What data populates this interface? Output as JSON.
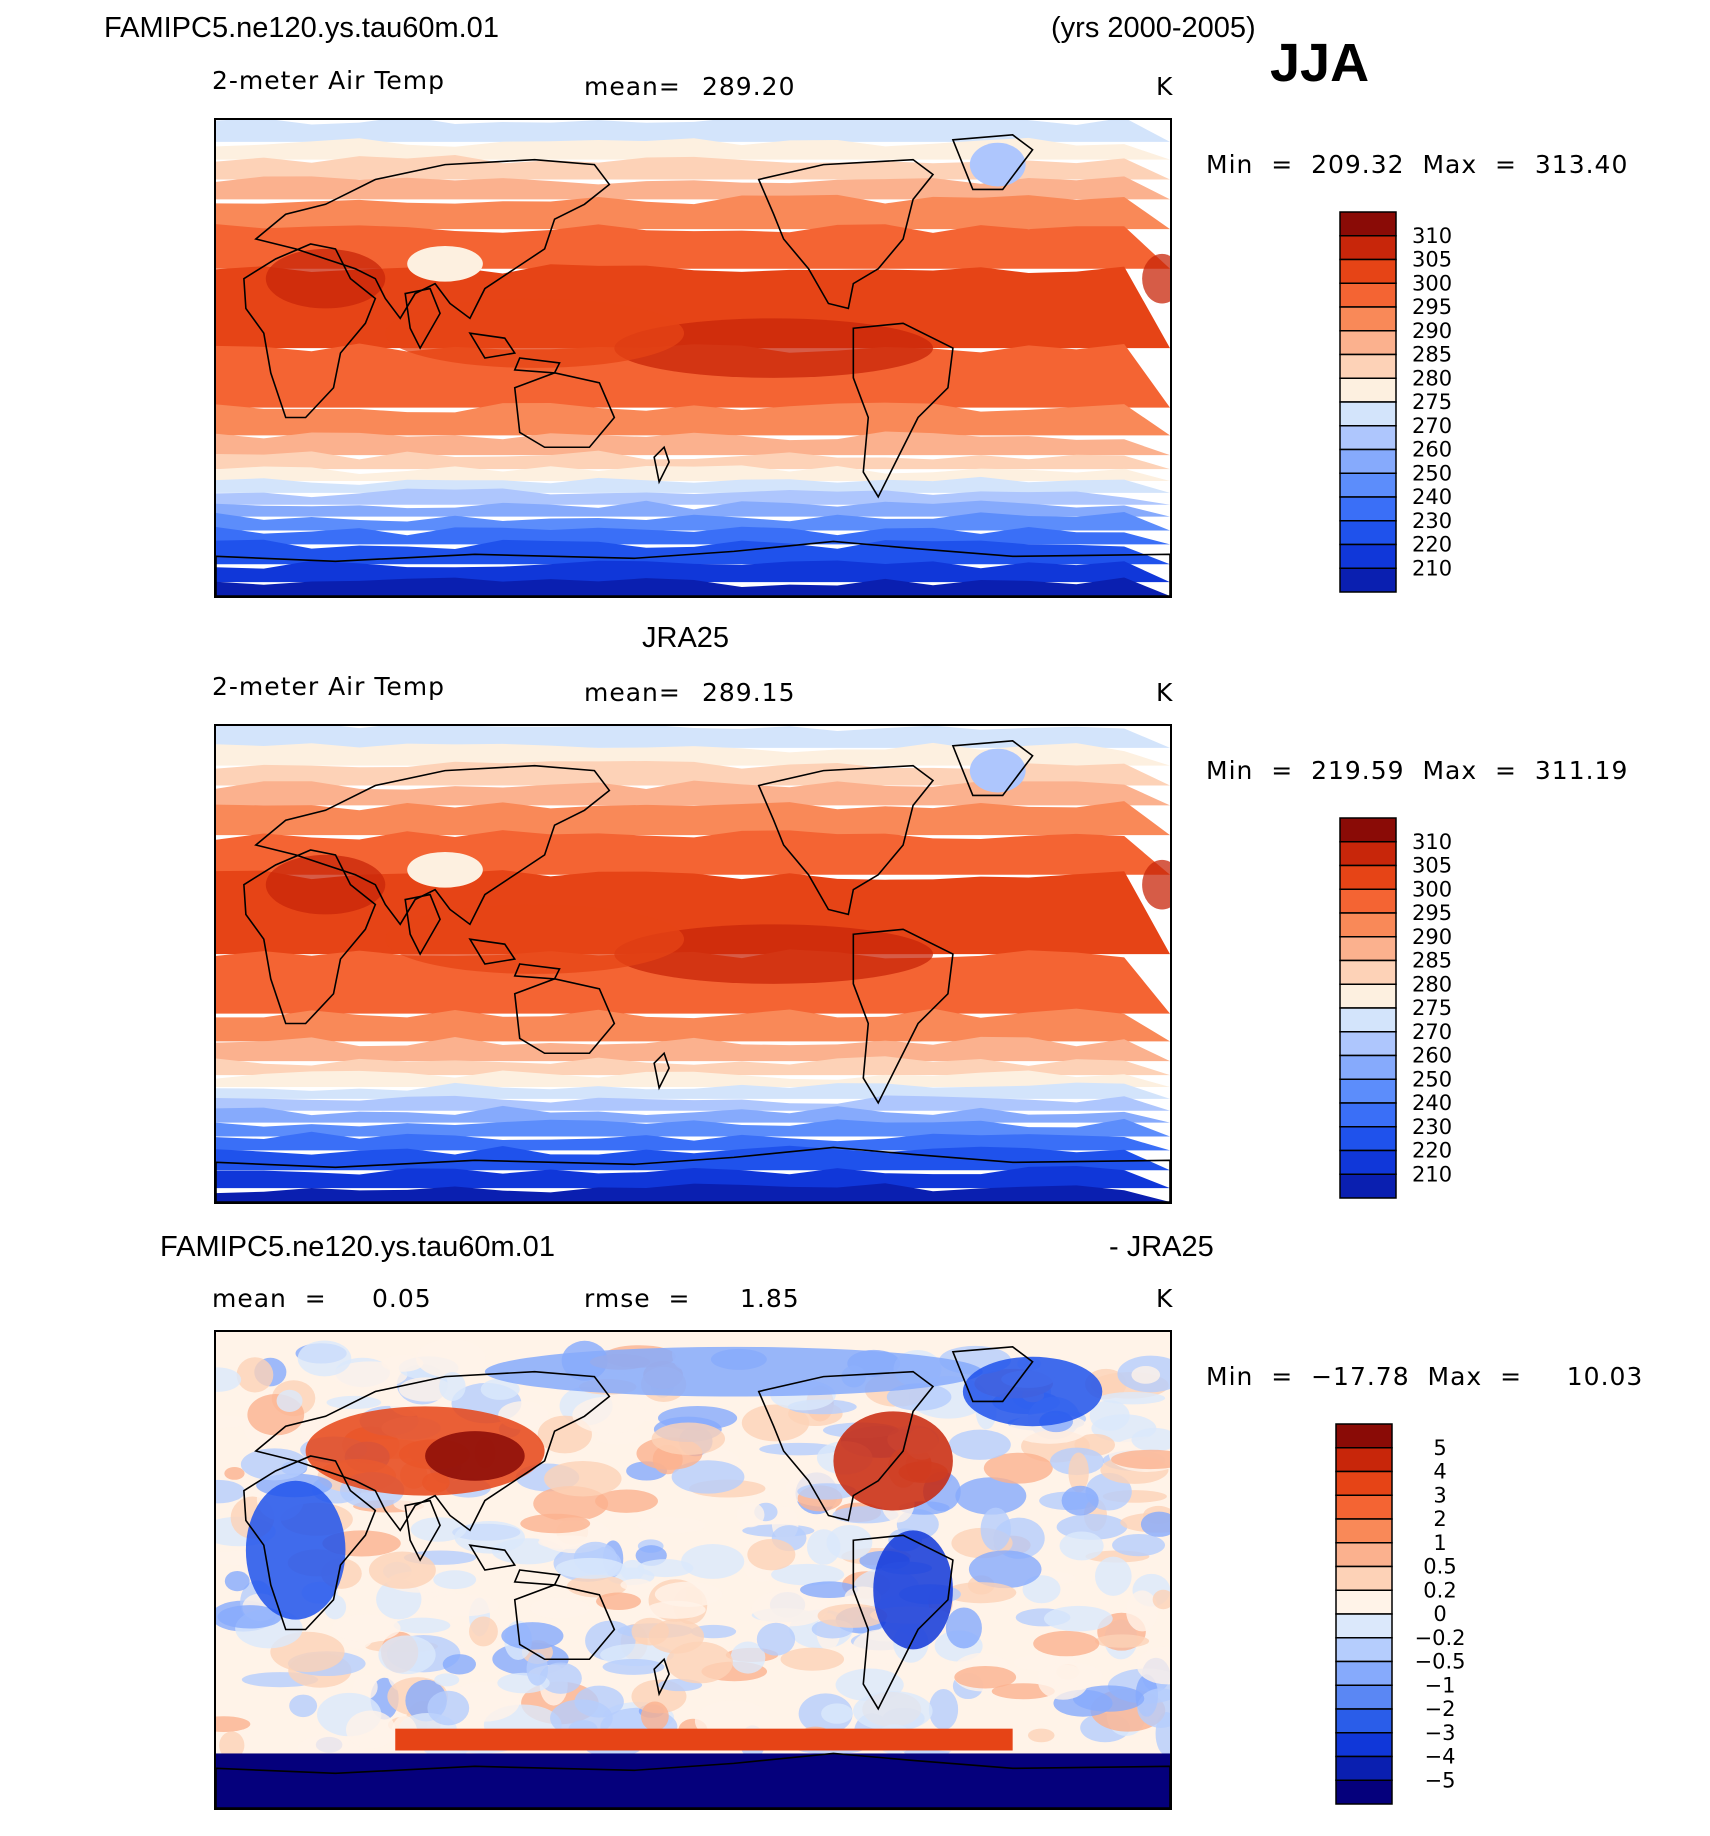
{
  "header": {
    "case_name": "FAMIPC5.ne120.ys.tau60m.01",
    "years": "(yrs 2000-2005)",
    "season": "JJA"
  },
  "colors": {
    "temp_scale": [
      "#08007a",
      "#0a1fb0",
      "#1037d9",
      "#1f52ec",
      "#3a6ff7",
      "#5c8dfb",
      "#86aafc",
      "#aec6fd",
      "#d3e4fb",
      "#fdf0e0",
      "#fdd2b7",
      "#fbb18e",
      "#f98958",
      "#f46433",
      "#e64416",
      "#c8260a",
      "#8a0b06"
    ],
    "diff_scale": [
      "#05007c",
      "#0a1fb0",
      "#1037d9",
      "#2a5de9",
      "#5a87f4",
      "#86aafc",
      "#b5cdfd",
      "#dbe8fb",
      "#fff3e8",
      "#fdd2b7",
      "#fbb18e",
      "#f98958",
      "#f46433",
      "#e64416",
      "#c8260a",
      "#8a0b06"
    ],
    "land_outline": "#000000"
  },
  "panels": [
    {
      "title": "",
      "variable": "2-meter Air Temp",
      "stat_left": "mean=",
      "stat_left_value": "289.20",
      "units": "K",
      "minmax_label": "Min  =  209.32  Max  =  313.40",
      "kind": "temp"
    },
    {
      "title": "JRA25",
      "variable": "2-meter Air Temp",
      "stat_left": "mean=",
      "stat_left_value": "289.15",
      "units": "K",
      "minmax_label": "Min  =  219.59  Max  =  311.19",
      "kind": "temp"
    },
    {
      "title_left": "FAMIPC5.ne120.ys.tau60m.01",
      "title_right": "- JRA25",
      "stat_left": "mean  =",
      "stat_left_value": "0.05",
      "stat_mid": "rmse  =",
      "stat_mid_value": "1.85",
      "units": "K",
      "minmax_label": "Min  =  −17.78  Max  =     10.03",
      "kind": "diff"
    }
  ],
  "chart_data": [
    {
      "type": "heatmap",
      "title": "FAMIPC5.ne120.ys.tau60m.01 2-meter Air Temp JJA",
      "units": "K",
      "mean": 289.2,
      "min": 209.32,
      "max": 313.4,
      "colorbar_levels": [
        310,
        305,
        300,
        295,
        290,
        285,
        280,
        275,
        270,
        260,
        250,
        240,
        230,
        220,
        210
      ]
    },
    {
      "type": "heatmap",
      "title": "JRA25 2-meter Air Temp JJA",
      "units": "K",
      "mean": 289.15,
      "min": 219.59,
      "max": 311.19,
      "colorbar_levels": [
        310,
        305,
        300,
        295,
        290,
        285,
        280,
        275,
        270,
        260,
        250,
        240,
        230,
        220,
        210
      ]
    },
    {
      "type": "heatmap",
      "title": "FAMIPC5.ne120.ys.tau60m.01 - JRA25",
      "units": "K",
      "mean": 0.05,
      "rmse": 1.85,
      "min": -17.78,
      "max": 10.03,
      "colorbar_levels": [
        "5",
        "4",
        "3",
        "2",
        "1",
        "0.5",
        "0.2",
        "0",
        "−0.2",
        "−0.5",
        "−1",
        "−2",
        "−3",
        "−4",
        "−5"
      ]
    }
  ]
}
